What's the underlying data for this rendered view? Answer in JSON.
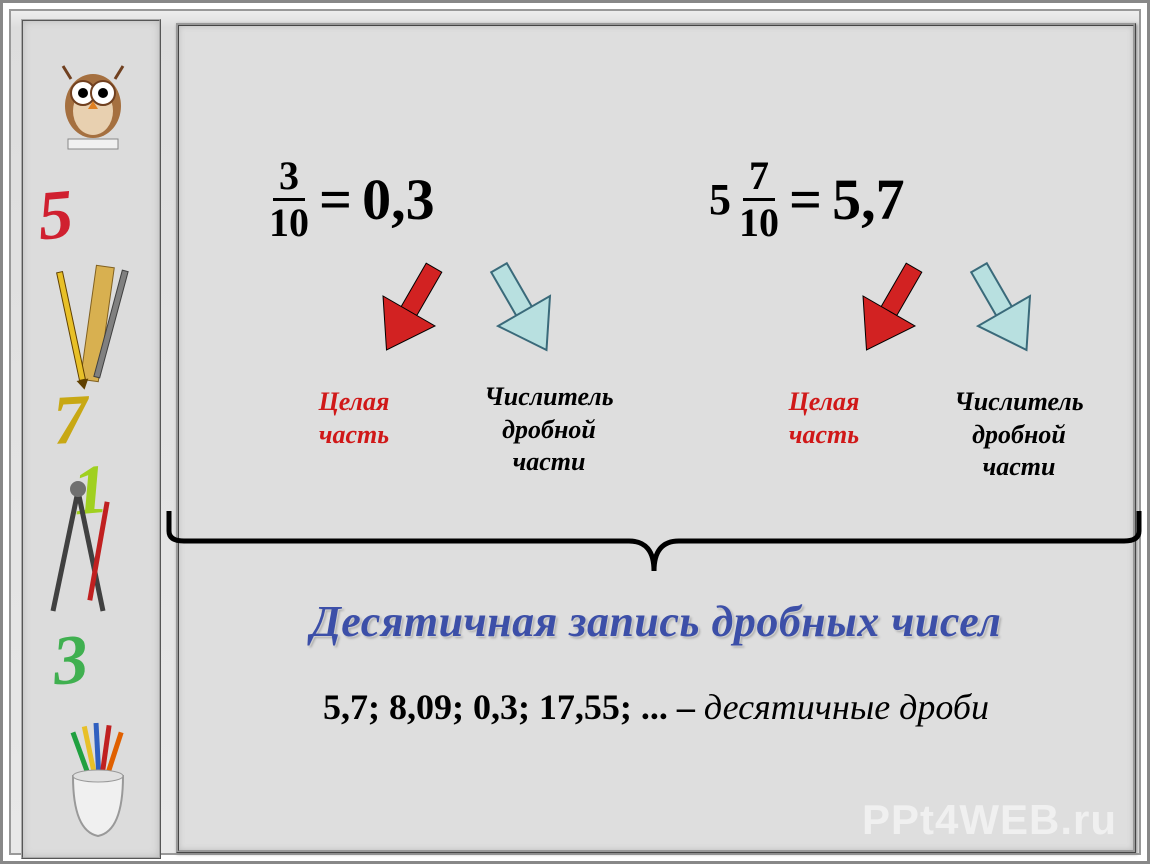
{
  "sidebar": {
    "digits": {
      "d5": "5",
      "d7": "7",
      "d1": "1",
      "d3": "3"
    },
    "icons": {
      "owl": "owl-thinking-icon",
      "tools1": "ruler-pencil-icon",
      "compass": "compass-pencil-icon",
      "cup": "pencil-cup-icon"
    }
  },
  "equations": {
    "eq1": {
      "fraction": {
        "numerator": "3",
        "denominator": "10"
      },
      "equals": "=",
      "decimal": "0,3",
      "arrows": {
        "red": {
          "fill": "#d22222",
          "stroke": "#000000"
        },
        "blue": {
          "fill": "#b8e0e0",
          "stroke": "#3a6a7a"
        }
      },
      "labels": {
        "whole_part": "Целая\nчасть",
        "numerator_part": "Числитель\nдробной\nчасти"
      }
    },
    "eq2": {
      "whole": "5",
      "fraction": {
        "numerator": "7",
        "denominator": "10"
      },
      "equals": "=",
      "decimal": "5,7",
      "arrows": {
        "red": {
          "fill": "#d22222",
          "stroke": "#000000"
        },
        "blue": {
          "fill": "#b8e0e0",
          "stroke": "#3a6a7a"
        }
      },
      "labels": {
        "whole_part": "Целая\nчасть",
        "numerator_part": "Числитель\nдробной\nчасти"
      }
    }
  },
  "brace": {
    "stroke": "#000000",
    "stroke_width": 5
  },
  "title": "Десятичная запись дробных чисел",
  "title_color": "#3c4fa8",
  "examples": {
    "numbers": "5,7; 8,09; 0,3; 17,55; ... –",
    "desc": " десятичные дроби"
  },
  "watermark": "PPt4WEB.ru",
  "colors": {
    "background": "#dedede",
    "sidebar_bg": "#dcdcdc",
    "red_label": "#d01818",
    "black": "#000000"
  }
}
